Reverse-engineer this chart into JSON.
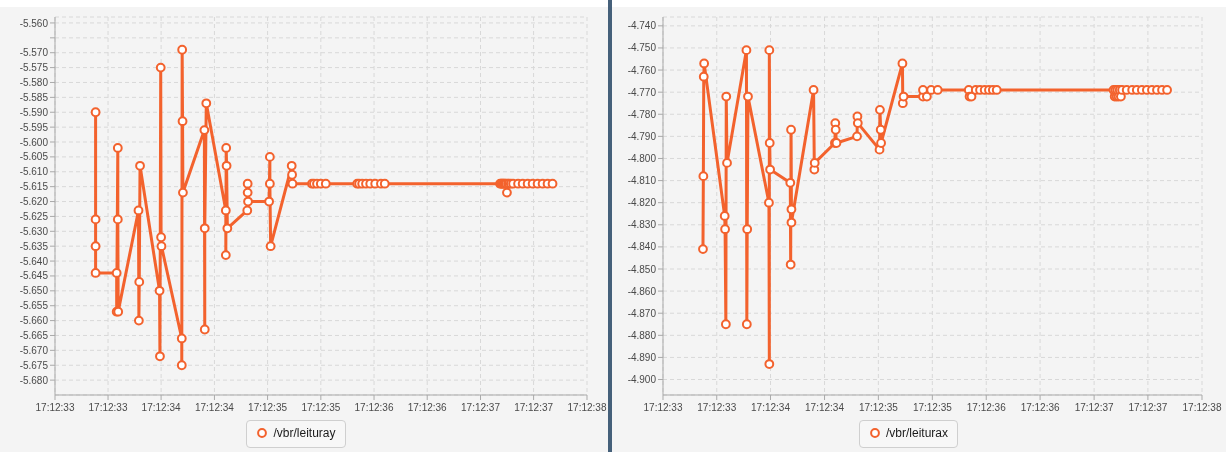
{
  "chart_data": [
    {
      "type": "line",
      "x": [
        17.209273,
        17.209273,
        17.209273,
        17.209273,
        17.209328,
        17.209328,
        17.209331,
        17.209331,
        17.209332,
        17.209385,
        17.209386,
        17.209387,
        17.209389,
        17.20944,
        17.209441,
        17.209443,
        17.209444,
        17.209445,
        17.209498,
        17.209498,
        17.209499,
        17.2095,
        17.209501,
        17.209557,
        17.209558,
        17.209558,
        17.209562,
        17.209613,
        17.209613,
        17.209614,
        17.209615,
        17.209617,
        17.209669,
        17.20967,
        17.20967,
        17.209671,
        17.209726,
        17.209728,
        17.209728,
        17.20973,
        17.209785,
        17.209786,
        17.209787,
        17.209838,
        17.209843,
        17.209851,
        17.209861,
        17.209874,
        17.209956,
        17.209961,
        17.209969,
        17.209979,
        17.20999,
        17.210003,
        17.210018,
        17.210028,
        17.210329,
        17.210332,
        17.210334,
        17.210337,
        17.210339,
        17.210342,
        17.210345,
        17.210347,
        17.21035,
        17.210352,
        17.210357,
        17.210363,
        17.210376,
        17.210388,
        17.210401,
        17.210414,
        17.210427,
        17.21044,
        17.210453,
        17.210466
      ],
      "series": [
        {
          "name": "/vbr/leituray",
          "color": "#f3622d",
          "values": [
            -5.59,
            -5.626,
            -5.635,
            -5.644,
            -5.644,
            -5.657,
            -5.602,
            -5.626,
            -5.657,
            -5.623,
            -5.66,
            -5.647,
            -5.608,
            -5.65,
            -5.672,
            -5.575,
            -5.632,
            -5.635,
            -5.666,
            -5.675,
            -5.569,
            -5.593,
            -5.617,
            -5.596,
            -5.663,
            -5.629,
            -5.587,
            -5.623,
            -5.638,
            -5.602,
            -5.608,
            -5.629,
            -5.623,
            -5.614,
            -5.617,
            -5.62,
            -5.62,
            -5.605,
            -5.614,
            -5.635,
            -5.608,
            -5.611,
            -5.614,
            -5.614,
            -5.614,
            -5.614,
            -5.614,
            -5.614,
            -5.614,
            -5.614,
            -5.614,
            -5.614,
            -5.614,
            -5.614,
            -5.614,
            -5.614,
            -5.614,
            -5.614,
            -5.614,
            -5.614,
            -5.614,
            -5.614,
            -5.614,
            -5.617,
            -5.614,
            -5.614,
            -5.614,
            -5.614,
            -5.614,
            -5.614,
            -5.614,
            -5.614,
            -5.614,
            -5.614,
            -5.614,
            -5.614
          ]
        }
      ],
      "xlim": [
        17.209167,
        17.210556
      ],
      "xticks": [
        {
          "value": 17.209167,
          "label": "17:12:33"
        },
        {
          "value": 17.2093055,
          "label": "17:12:33"
        },
        {
          "value": 17.209444,
          "label": "17:12:34"
        },
        {
          "value": 17.2095833,
          "label": "17:12:34"
        },
        {
          "value": 17.209722,
          "label": "17:12:35"
        },
        {
          "value": 17.2098611,
          "label": "17:12:35"
        },
        {
          "value": 17.21,
          "label": "17:12:36"
        },
        {
          "value": 17.2101388,
          "label": "17:12:36"
        },
        {
          "value": 17.210278,
          "label": "17:12:37"
        },
        {
          "value": 17.2104166,
          "label": "17:12:37"
        },
        {
          "value": 17.210556,
          "label": "17:12:38"
        }
      ],
      "ylim": [
        -5.685,
        -5.558
      ],
      "yticks": [
        {
          "value": -5.56,
          "label": "-5.560"
        },
        {
          "value": -5.565,
          "label": null
        },
        {
          "value": -5.57,
          "label": "-5.570"
        },
        {
          "value": -5.575,
          "label": "-5.575"
        },
        {
          "value": -5.58,
          "label": "-5.580"
        },
        {
          "value": -5.585,
          "label": "-5.585"
        },
        {
          "value": -5.59,
          "label": "-5.590"
        },
        {
          "value": -5.595,
          "label": "-5.595"
        },
        {
          "value": -5.6,
          "label": "-5.600"
        },
        {
          "value": -5.605,
          "label": "-5.605"
        },
        {
          "value": -5.61,
          "label": "-5.610"
        },
        {
          "value": -5.615,
          "label": "-5.615"
        },
        {
          "value": -5.62,
          "label": "-5.620"
        },
        {
          "value": -5.625,
          "label": "-5.625"
        },
        {
          "value": -5.63,
          "label": "-5.630"
        },
        {
          "value": -5.635,
          "label": "-5.635"
        },
        {
          "value": -5.64,
          "label": "-5.640"
        },
        {
          "value": -5.645,
          "label": "-5.645"
        },
        {
          "value": -5.65,
          "label": "-5.650"
        },
        {
          "value": -5.655,
          "label": "-5.655"
        },
        {
          "value": -5.66,
          "label": "-5.660"
        },
        {
          "value": -5.665,
          "label": "-5.665"
        },
        {
          "value": -5.67,
          "label": "-5.670"
        },
        {
          "value": -5.675,
          "label": "-5.675"
        },
        {
          "value": -5.68,
          "label": "-5.680"
        }
      ],
      "grid": true,
      "legend": "bottom",
      "marker": "circle",
      "line_style": "solid"
    },
    {
      "type": "line",
      "x": [
        17.20927,
        17.209271,
        17.209272,
        17.209273,
        17.209326,
        17.209327,
        17.209329,
        17.20933,
        17.209332,
        17.209382,
        17.209383,
        17.209384,
        17.209386,
        17.20944,
        17.209441,
        17.209441,
        17.209442,
        17.209443,
        17.209495,
        17.209496,
        17.209497,
        17.209498,
        17.209498,
        17.209555,
        17.209557,
        17.209558,
        17.20961,
        17.209611,
        17.209612,
        17.209614,
        17.209667,
        17.209668,
        17.209669,
        17.209725,
        17.209726,
        17.209728,
        17.209729,
        17.209784,
        17.209785,
        17.209787,
        17.209837,
        17.209837,
        17.209847,
        17.209858,
        17.209875,
        17.209955,
        17.209957,
        17.209962,
        17.209973,
        17.209984,
        17.209996,
        17.210007,
        17.210017,
        17.210027,
        17.210328,
        17.210331,
        17.210333,
        17.210336,
        17.210338,
        17.210341,
        17.210344,
        17.210347,
        17.21035,
        17.210362,
        17.210376,
        17.210388,
        17.210401,
        17.210414,
        17.210427,
        17.21044,
        17.210453,
        17.210466
      ],
      "series": [
        {
          "name": "/vbr/leiturax",
          "color": "#f3622d",
          "values": [
            -4.841,
            -4.808,
            -4.763,
            -4.757,
            -4.826,
            -4.832,
            -4.875,
            -4.772,
            -4.802,
            -4.751,
            -4.875,
            -4.832,
            -4.772,
            -4.82,
            -4.893,
            -4.751,
            -4.793,
            -4.805,
            -4.811,
            -4.848,
            -4.787,
            -4.823,
            -4.829,
            -4.769,
            -4.805,
            -4.802,
            -4.793,
            -4.784,
            -4.787,
            -4.793,
            -4.79,
            -4.781,
            -4.784,
            -4.796,
            -4.778,
            -4.787,
            -4.793,
            -4.757,
            -4.775,
            -4.772,
            -4.772,
            -4.769,
            -4.772,
            -4.769,
            -4.769,
            -4.769,
            -4.772,
            -4.772,
            -4.769,
            -4.769,
            -4.769,
            -4.769,
            -4.769,
            -4.769,
            -4.769,
            -4.772,
            -4.769,
            -4.772,
            -4.769,
            -4.772,
            -4.769,
            -4.772,
            -4.769,
            -4.769,
            -4.769,
            -4.769,
            -4.769,
            -4.769,
            -4.769,
            -4.769,
            -4.769,
            -4.769
          ]
        }
      ],
      "xlim": [
        17.209167,
        17.210556
      ],
      "xticks": [
        {
          "value": 17.209167,
          "label": "17:12:33"
        },
        {
          "value": 17.2093055,
          "label": "17:12:33"
        },
        {
          "value": 17.209444,
          "label": "17:12:34"
        },
        {
          "value": 17.2095833,
          "label": "17:12:34"
        },
        {
          "value": 17.209722,
          "label": "17:12:35"
        },
        {
          "value": 17.2098611,
          "label": "17:12:35"
        },
        {
          "value": 17.21,
          "label": "17:12:36"
        },
        {
          "value": 17.2101388,
          "label": "17:12:36"
        },
        {
          "value": 17.210278,
          "label": "17:12:37"
        },
        {
          "value": 17.2104166,
          "label": "17:12:37"
        },
        {
          "value": 17.210556,
          "label": "17:12:38"
        }
      ],
      "ylim": [
        -4.907,
        -4.736
      ],
      "yticks": [
        {
          "value": -4.74,
          "label": "-4.740"
        },
        {
          "value": -4.75,
          "label": "-4.750"
        },
        {
          "value": -4.76,
          "label": "-4.760"
        },
        {
          "value": -4.77,
          "label": "-4.770"
        },
        {
          "value": -4.78,
          "label": "-4.780"
        },
        {
          "value": -4.79,
          "label": "-4.790"
        },
        {
          "value": -4.8,
          "label": "-4.800"
        },
        {
          "value": -4.81,
          "label": "-4.810"
        },
        {
          "value": -4.82,
          "label": "-4.820"
        },
        {
          "value": -4.83,
          "label": "-4.830"
        },
        {
          "value": -4.84,
          "label": "-4.840"
        },
        {
          "value": -4.85,
          "label": "-4.850"
        },
        {
          "value": -4.86,
          "label": "-4.860"
        },
        {
          "value": -4.87,
          "label": "-4.870"
        },
        {
          "value": -4.88,
          "label": "-4.880"
        },
        {
          "value": -4.89,
          "label": "-4.890"
        },
        {
          "value": -4.9,
          "label": "-4.900"
        }
      ],
      "grid": true,
      "legend": "bottom",
      "marker": "circle",
      "line_style": "solid"
    }
  ]
}
